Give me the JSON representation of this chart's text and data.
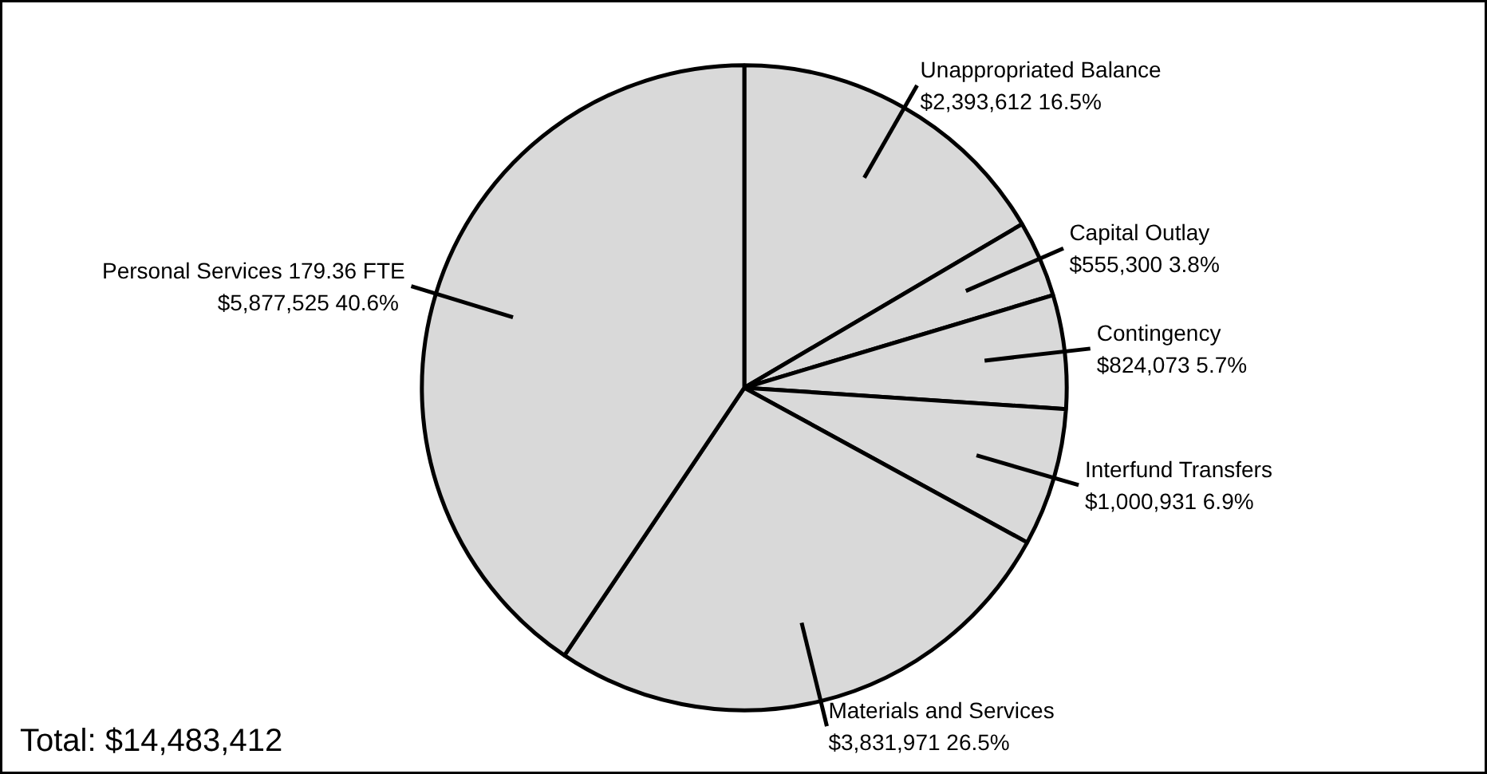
{
  "chart_data": {
    "type": "pie",
    "categories": [
      "Unappropriated Balance",
      "Capital Outlay",
      "Contingency",
      "Interfund Transfers",
      "Materials and Services",
      "Personal Services 179.36 FTE"
    ],
    "values": [
      2393612,
      555300,
      824073,
      1000931,
      3831971,
      5877525
    ],
    "value_labels": [
      "$2,393,612  16.5%",
      "$555,300  3.8%",
      "$824,073  5.7%",
      "$1,000,931  6.9%",
      "$3,831,971  26.5%",
      "$5,877,525  40.6%"
    ],
    "colors": [
      "#d9d9d9",
      "#d9d9d9",
      "#d9d9d9",
      "#d9d9d9",
      "#d9d9d9",
      "#d9d9d9"
    ],
    "annotations": [
      "Total: $14,483,412"
    ]
  }
}
